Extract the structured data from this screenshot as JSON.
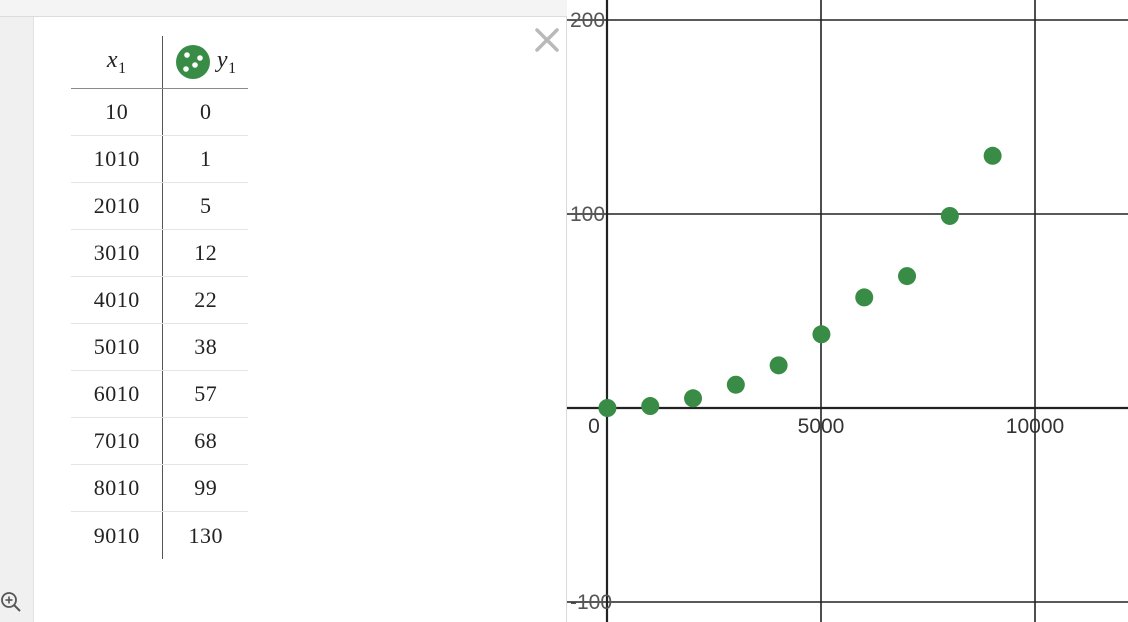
{
  "table": {
    "x_header": "x",
    "x_sub": "1",
    "y_header": "y",
    "y_sub": "1",
    "rows": [
      {
        "x": "10",
        "y": "0"
      },
      {
        "x": "1010",
        "y": "1"
      },
      {
        "x": "2010",
        "y": "5"
      },
      {
        "x": "3010",
        "y": "12"
      },
      {
        "x": "4010",
        "y": "22"
      },
      {
        "x": "5010",
        "y": "38"
      },
      {
        "x": "6010",
        "y": "57"
      },
      {
        "x": "7010",
        "y": "68"
      },
      {
        "x": "8010",
        "y": "99"
      },
      {
        "x": "9010",
        "y": "130"
      }
    ]
  },
  "icons": {
    "close": "close-icon",
    "zoom": "zoom-in-icon",
    "points": "points-style-icon"
  },
  "colors": {
    "point": "#388c46",
    "axis": "#222222",
    "grid": "#222222"
  },
  "chart_data": {
    "type": "scatter",
    "x": [
      10,
      1010,
      2010,
      3010,
      4010,
      5010,
      6010,
      7010,
      8010,
      9010
    ],
    "y": [
      0,
      1,
      5,
      12,
      22,
      38,
      57,
      68,
      99,
      130
    ],
    "xlim": [
      -100,
      12200
    ],
    "ylim": [
      -100,
      200
    ],
    "x_ticks": [
      0,
      5000,
      10000
    ],
    "y_ticks": [
      100,
      200,
      -100
    ],
    "x_tick_labels": [
      "0",
      "5000",
      "10000"
    ],
    "y_tick_labels": [
      "100",
      "200",
      "-100"
    ],
    "grid": true,
    "title": "",
    "xlabel": "",
    "ylabel": ""
  }
}
